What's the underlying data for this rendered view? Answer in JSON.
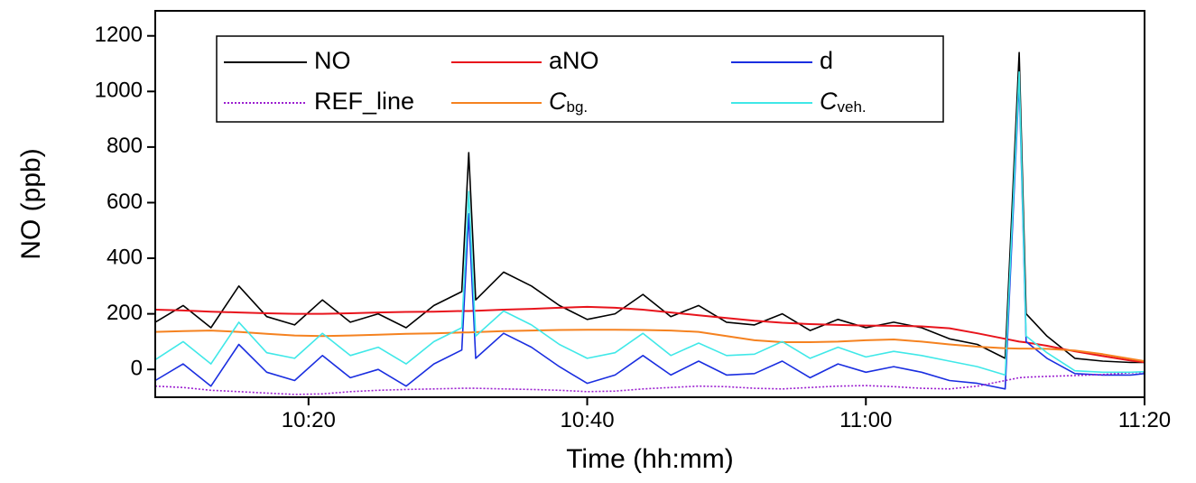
{
  "chart_data": {
    "type": "line",
    "x_label": "Time (hh:mm)",
    "y_label": "NO (ppb)",
    "xlim": [
      609,
      680
    ],
    "xticks": [
      {
        "value": 620,
        "label": "10:20"
      },
      {
        "value": 640,
        "label": "10:40"
      },
      {
        "value": 660,
        "label": "11:00"
      },
      {
        "value": 680,
        "label": "11:20"
      }
    ],
    "ylim": [
      -100,
      1290
    ],
    "yticks": [
      0,
      200,
      400,
      600,
      800,
      1000,
      1200
    ],
    "legend": "top",
    "x": [
      609,
      611,
      613,
      615,
      617,
      619,
      621,
      623,
      625,
      627,
      629,
      631,
      631.5,
      632,
      634,
      636,
      638,
      640,
      642,
      644,
      646,
      648,
      650,
      652,
      654,
      656,
      658,
      660,
      662,
      664,
      666,
      668,
      670,
      671,
      671.5,
      673,
      675,
      677,
      679,
      680
    ],
    "series": [
      {
        "name": "NO",
        "color": "#000000",
        "values": [
          170,
          230,
          150,
          300,
          190,
          160,
          250,
          170,
          200,
          150,
          230,
          280,
          780,
          250,
          350,
          300,
          230,
          180,
          200,
          270,
          190,
          230,
          170,
          160,
          200,
          140,
          180,
          150,
          170,
          150,
          110,
          90,
          40,
          1140,
          200,
          120,
          40,
          30,
          25,
          25
        ]
      },
      {
        "name": "aNO",
        "color": "#e8141c",
        "values": [
          215,
          212,
          208,
          205,
          202,
          200,
          200,
          202,
          205,
          207,
          208,
          210,
          210,
          211,
          215,
          218,
          222,
          225,
          222,
          215,
          205,
          195,
          185,
          175,
          168,
          163,
          160,
          158,
          157,
          155,
          148,
          130,
          110,
          100,
          97,
          85,
          65,
          48,
          32,
          26
        ]
      },
      {
        "name": "d",
        "color": "#1a2ee0",
        "values": [
          -40,
          20,
          -60,
          90,
          -10,
          -40,
          50,
          -30,
          0,
          -60,
          20,
          70,
          560,
          40,
          130,
          80,
          10,
          -50,
          -20,
          50,
          -20,
          30,
          -20,
          -15,
          30,
          -30,
          20,
          -10,
          10,
          -10,
          -40,
          -50,
          -70,
          1040,
          100,
          40,
          -15,
          -20,
          -20,
          -15
        ]
      },
      {
        "name": "REF_line",
        "color": "#9b1fd0",
        "dashed": true,
        "values": [
          -60,
          -65,
          -75,
          -80,
          -85,
          -90,
          -88,
          -80,
          -75,
          -72,
          -70,
          -68,
          -68,
          -68,
          -70,
          -72,
          -75,
          -80,
          -78,
          -70,
          -65,
          -60,
          -62,
          -68,
          -70,
          -65,
          -60,
          -58,
          -62,
          -68,
          -70,
          -60,
          -40,
          -30,
          -28,
          -25,
          -22,
          -18,
          -12,
          -10
        ]
      },
      {
        "name": "Cbg.",
        "color": "#f58220",
        "values": [
          135,
          138,
          140,
          135,
          128,
          122,
          120,
          122,
          125,
          128,
          130,
          133,
          133,
          134,
          138,
          140,
          142,
          143,
          143,
          142,
          140,
          135,
          120,
          105,
          98,
          98,
          100,
          105,
          108,
          100,
          90,
          82,
          76,
          75,
          75,
          74,
          68,
          55,
          38,
          30
        ]
      },
      {
        "name": "Cveh.",
        "color": "#40e8e8",
        "values": [
          35,
          100,
          20,
          170,
          60,
          40,
          130,
          50,
          80,
          20,
          100,
          150,
          640,
          120,
          210,
          160,
          90,
          40,
          60,
          130,
          50,
          95,
          50,
          55,
          100,
          40,
          80,
          45,
          65,
          50,
          30,
          10,
          -20,
          1070,
          120,
          60,
          -5,
          -10,
          -10,
          -8
        ]
      }
    ]
  }
}
